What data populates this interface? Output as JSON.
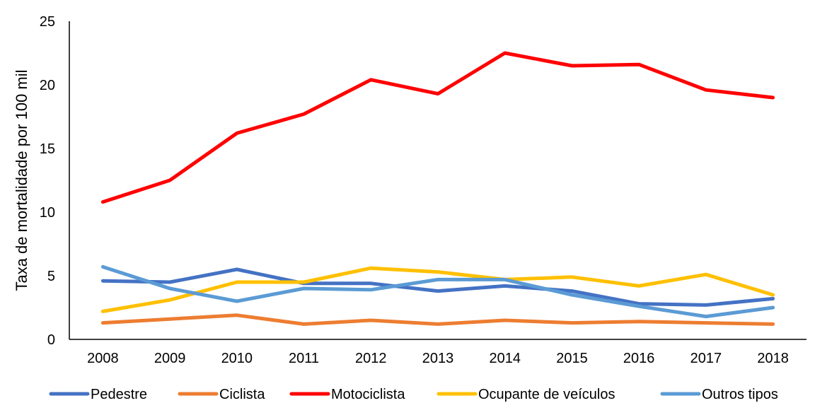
{
  "chart_data": {
    "type": "line",
    "title": "",
    "xlabel": "",
    "ylabel": "Taxa de mortalidade por 100 mil",
    "ylim": [
      0,
      25
    ],
    "yticks": [
      0,
      5,
      10,
      15,
      20,
      25
    ],
    "grid": false,
    "legend": "bottom",
    "x": [
      "2008",
      "2009",
      "2010",
      "2011",
      "2012",
      "2013",
      "2014",
      "2015",
      "2016",
      "2017",
      "2018"
    ],
    "series": [
      {
        "name": "Pedestre",
        "color": "#4472C4",
        "values": [
          4.6,
          4.5,
          5.5,
          4.4,
          4.4,
          3.8,
          4.2,
          3.8,
          2.8,
          2.7,
          3.2
        ]
      },
      {
        "name": "Ciclista",
        "color": "#ED7D31",
        "values": [
          1.3,
          1.6,
          1.9,
          1.2,
          1.5,
          1.2,
          1.5,
          1.3,
          1.4,
          1.3,
          1.2
        ]
      },
      {
        "name": "Motociclista",
        "color": "#FF0000",
        "values": [
          10.8,
          12.5,
          16.2,
          17.7,
          20.4,
          19.3,
          22.5,
          21.5,
          21.6,
          19.6,
          19.0
        ]
      },
      {
        "name": "Ocupante de veículos",
        "color": "#FFC000",
        "values": [
          2.2,
          3.1,
          4.5,
          4.5,
          5.6,
          5.3,
          4.7,
          4.9,
          4.2,
          5.1,
          3.5
        ]
      },
      {
        "name": "Outros tipos",
        "color": "#5B9BD5",
        "values": [
          5.7,
          4.0,
          3.0,
          4.0,
          3.9,
          4.7,
          4.7,
          3.5,
          2.6,
          1.8,
          2.5
        ]
      }
    ]
  }
}
